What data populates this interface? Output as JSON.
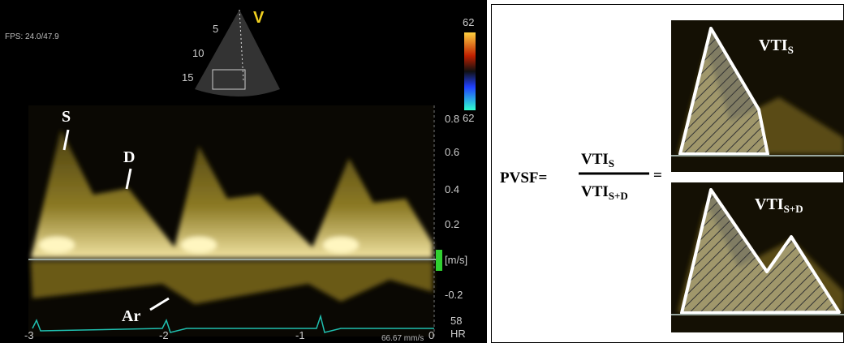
{
  "echo_panel": {
    "fps": "FPS: 24.0/47.9",
    "view_label": "V",
    "depth_labels": [
      "5",
      "10",
      "15"
    ],
    "color_scale": {
      "top": "62",
      "bottom": "62"
    },
    "velocity_scale": {
      "ticks": [
        "0.8",
        "0.6",
        "0.4",
        "0.2",
        "-0.2"
      ],
      "unit": "[m/s]"
    },
    "hr": {
      "value": "58",
      "label": "HR"
    },
    "time_ticks": [
      "-3",
      "-2",
      "-1",
      "0"
    ],
    "sweep": "66.67 mm/s",
    "wave_labels": {
      "s": "S",
      "d": "D",
      "ar": "Ar"
    }
  },
  "formula": {
    "lhs": "PVSF=",
    "numerator": {
      "text": "VTI",
      "sub": "S"
    },
    "denominator": {
      "text": "VTI",
      "sub": "S+D"
    },
    "equals": "=",
    "top_image": {
      "text": "VTI",
      "sub": "S"
    },
    "bottom_image": {
      "text": "VTI",
      "sub": "S+D"
    }
  }
}
